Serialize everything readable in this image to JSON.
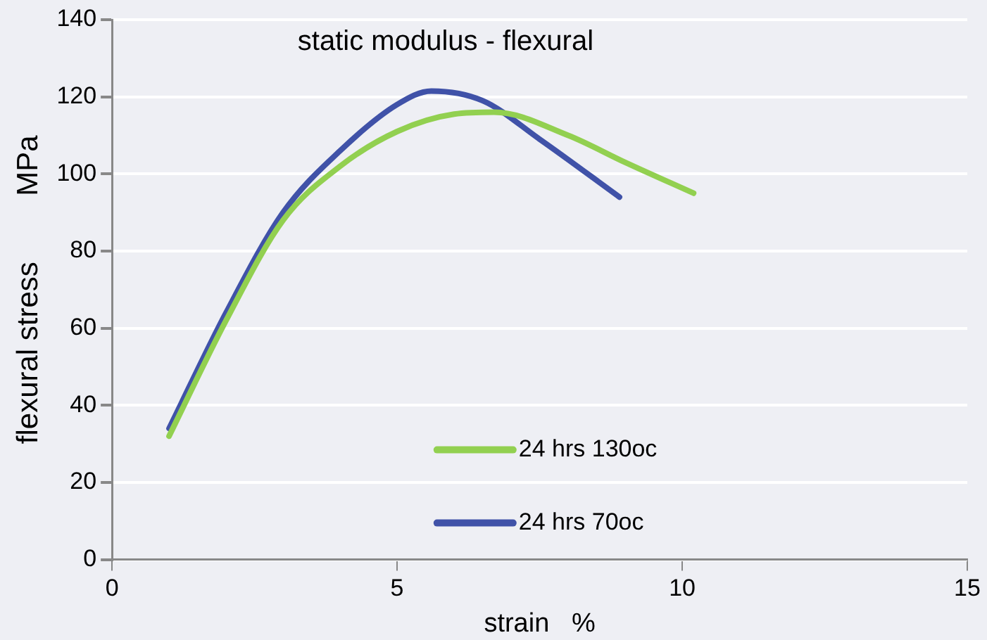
{
  "chart_data": {
    "type": "line",
    "title": "static modulus - flexural",
    "xlabel": "strain   %",
    "ylabel": "flexural stress        MPa",
    "xlim": [
      0,
      15
    ],
    "xticks": [
      0,
      5,
      10,
      15
    ],
    "ylim": [
      0,
      140
    ],
    "yticks": [
      0,
      20,
      40,
      60,
      80,
      100,
      120,
      140
    ],
    "grid": "y",
    "legend": "bottom",
    "marker": "none",
    "line_style": "solid",
    "series": [
      {
        "name": "24 hrs 130oc",
        "color": "#92d050",
        "x": [
          1,
          2,
          3,
          4,
          5,
          6,
          6.7,
          8,
          9,
          10.2
        ],
        "values": [
          32,
          62,
          88,
          102,
          111,
          115.5,
          116,
          110,
          103,
          95
        ]
      },
      {
        "name": "24 hrs 70oc",
        "color": "#4052a8",
        "x": [
          1,
          2,
          3,
          4,
          5,
          5.6,
          6.5,
          7.5,
          8.9
        ],
        "values": [
          34,
          64,
          90,
          106,
          118,
          121.5,
          119,
          109,
          94
        ]
      }
    ]
  }
}
